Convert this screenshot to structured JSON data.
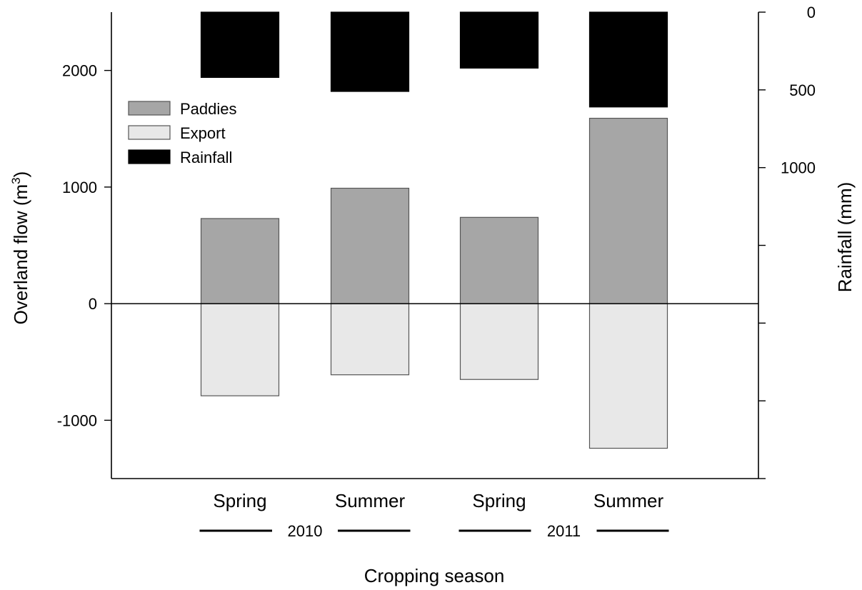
{
  "chart_data": {
    "type": "bar",
    "categories": [
      "Spring",
      "Summer",
      "Spring",
      "Summer"
    ],
    "groups": [
      {
        "label": "2010",
        "categories": [
          0,
          1
        ]
      },
      {
        "label": "2011",
        "categories": [
          2,
          3
        ]
      }
    ],
    "series": [
      {
        "name": "Paddies",
        "axis": "left",
        "values": [
          730,
          990,
          740,
          1590
        ],
        "color": "#a6a6a6"
      },
      {
        "name": "Export",
        "axis": "left",
        "values": [
          -790,
          -610,
          -650,
          -1240
        ],
        "color": "#e8e8e8"
      },
      {
        "name": "Rainfall",
        "axis": "right",
        "values": [
          420,
          510,
          360,
          610
        ],
        "color": "#000000"
      }
    ],
    "left_axis": {
      "label_prefix": "Overland flow (m",
      "label_sup": "3",
      "label_suffix": ")",
      "ylim": [
        -1500,
        2500
      ],
      "ticks": [
        -1000,
        0,
        1000,
        2000
      ],
      "tick_labels": [
        "-1000",
        "0",
        "1000",
        "2000"
      ]
    },
    "right_axis": {
      "label": "Rainfall (mm)",
      "ylim": [
        0,
        3000
      ],
      "inverted": true,
      "ticks": [
        0,
        500,
        1000,
        1500,
        2000,
        2500,
        3000
      ],
      "tick_labels": [
        "0",
        "500",
        "1000",
        "",
        "",
        "",
        ""
      ]
    },
    "xlabel": "Cropping season",
    "zero_line": true,
    "grid": false,
    "legend": {
      "position": "top-left",
      "entries": [
        "Paddies",
        "Export",
        "Rainfall"
      ]
    }
  }
}
